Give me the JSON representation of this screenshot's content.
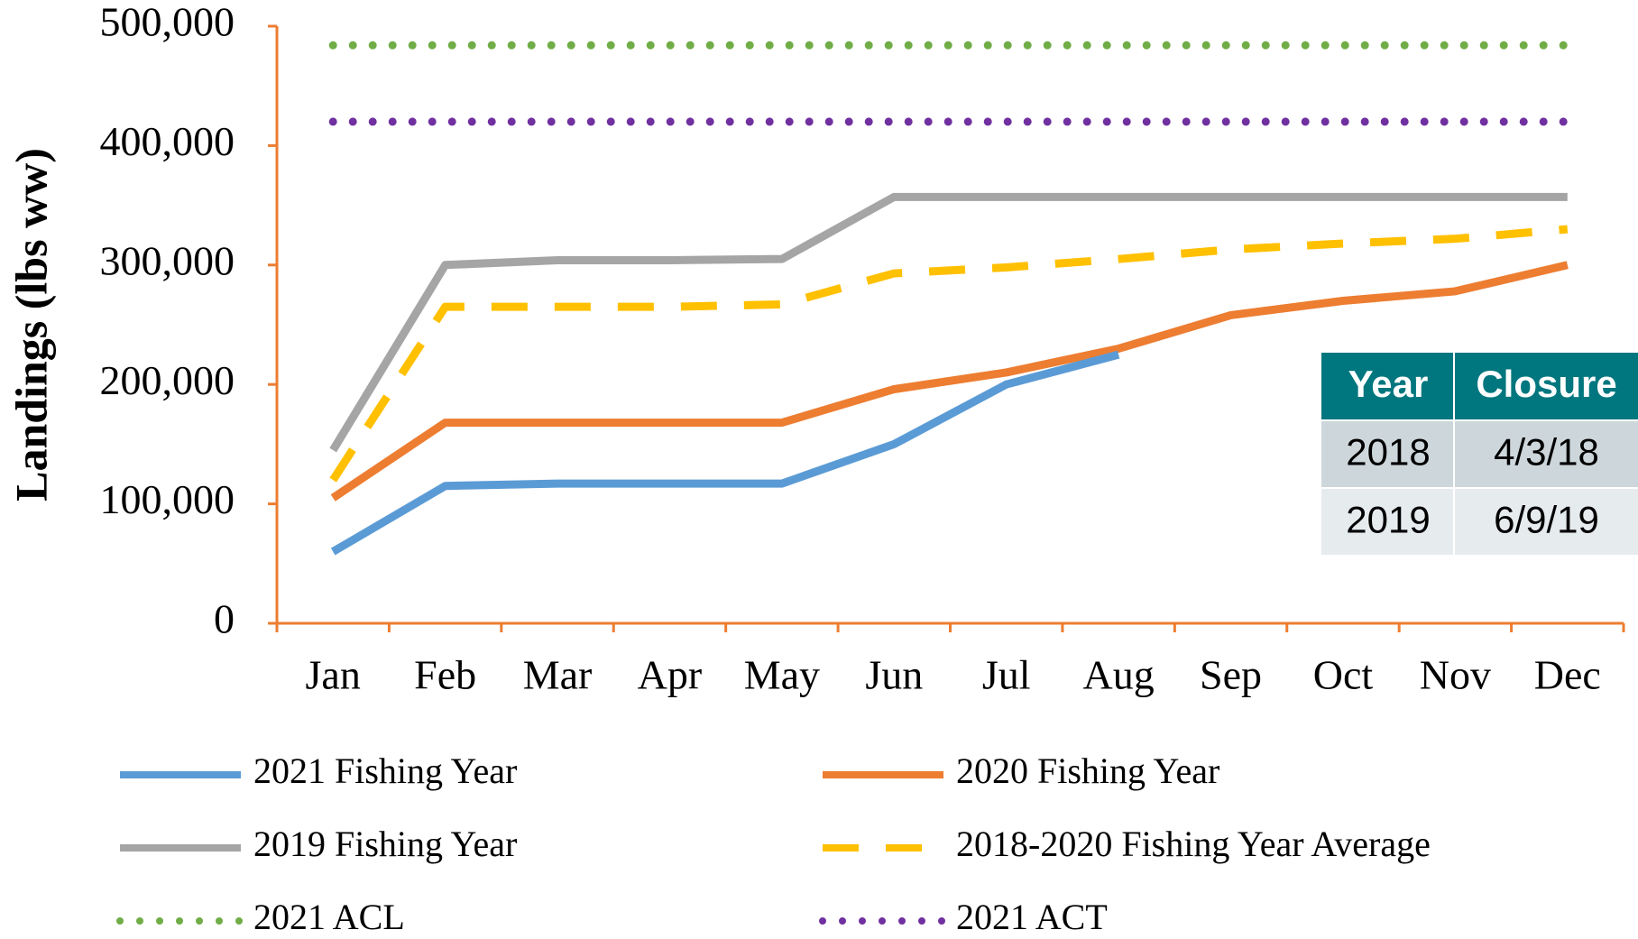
{
  "chart_data": {
    "type": "line",
    "y_label": "Landings (lbs ww)",
    "categories": [
      "Jan",
      "Feb",
      "Mar",
      "Apr",
      "May",
      "Jun",
      "Jul",
      "Aug",
      "Sep",
      "Oct",
      "Nov",
      "Dec"
    ],
    "ylim": [
      0,
      500000
    ],
    "yticks": [
      0,
      {
        "value": 100000,
        "label": "100,000"
      },
      {
        "value": 200000,
        "label": "200,000"
      },
      {
        "value": 300000,
        "label": "300,000"
      },
      {
        "value": 400000,
        "label": "400,000"
      },
      {
        "value": 500000,
        "label": "500,000"
      }
    ],
    "axis_color": "#ed7d31",
    "series": [
      {
        "name": "2021 Fishing Year",
        "color": "#5b9bd5",
        "line_style": "solid",
        "values": [
          60000,
          115000,
          117000,
          117000,
          117000,
          150000,
          200000,
          225000,
          null,
          null,
          null,
          null
        ]
      },
      {
        "name": "2020 Fishing Year",
        "color": "#ed7d31",
        "line_style": "solid",
        "values": [
          105000,
          168000,
          168000,
          168000,
          168000,
          196000,
          210000,
          230000,
          258000,
          270000,
          278000,
          300000
        ]
      },
      {
        "name": "2019 Fishing Year",
        "color": "#a5a5a5",
        "line_style": "solid",
        "values": [
          145000,
          300000,
          304000,
          304000,
          305000,
          357000,
          357000,
          357000,
          357000,
          357000,
          357000,
          357000
        ]
      },
      {
        "name": "2018-2020 Fishing Year Average",
        "color": "#ffc000",
        "line_style": "dashed",
        "values": [
          120000,
          265000,
          265000,
          265000,
          267000,
          293000,
          298000,
          305000,
          313000,
          318000,
          322000,
          330000
        ]
      },
      {
        "name": "2021 ACL",
        "color": "#70ad47",
        "line_style": "dotted",
        "values": [
          484000,
          484000,
          484000,
          484000,
          484000,
          484000,
          484000,
          484000,
          484000,
          484000,
          484000,
          484000
        ]
      },
      {
        "name": "2021 ACT",
        "color": "#7030a0",
        "line_style": "dotted",
        "values": [
          420000,
          420000,
          420000,
          420000,
          420000,
          420000,
          420000,
          420000,
          420000,
          420000,
          420000,
          420000
        ]
      }
    ]
  },
  "table": {
    "header": [
      "Year",
      "Closure"
    ],
    "rows": [
      [
        "2018",
        "4/3/18"
      ],
      [
        "2019",
        "6/9/19"
      ]
    ]
  }
}
